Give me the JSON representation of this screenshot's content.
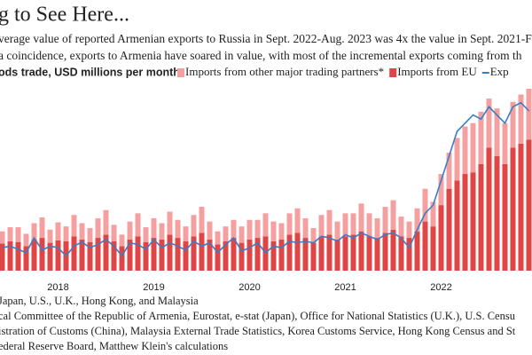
{
  "chart_data": {
    "type": "bar",
    "title": "g to See Here...",
    "subtitle": [
      "verage value of reported Armenian exports to Russia in Sept. 2022-Aug. 2023 was 4x the value in Sept. 2021-Fe",
      "a coincidence, exports to Armenia have soared in value, with most of the incremental exports coming from th"
    ],
    "y_label": "ods trade, USD millions per month",
    "categories": [
      null,
      null,
      null,
      null,
      null,
      null,
      null,
      "2018",
      null,
      null,
      null,
      null,
      null,
      null,
      null,
      null,
      null,
      null,
      null,
      "2019",
      null,
      null,
      null,
      null,
      null,
      null,
      null,
      null,
      null,
      null,
      null,
      "2020",
      null,
      null,
      null,
      null,
      null,
      null,
      null,
      null,
      null,
      null,
      null,
      "2021",
      null,
      null,
      null,
      null,
      null,
      null,
      null,
      null,
      null,
      null,
      null,
      "2022",
      null,
      null,
      null,
      null,
      null,
      null,
      null,
      null,
      null,
      null,
      null
    ],
    "series": [
      {
        "name": "Imports from EU",
        "color": "#e04545",
        "values": [
          33,
          36,
          35,
          30,
          38,
          40,
          34,
          37,
          36,
          42,
          38,
          35,
          40,
          44,
          36,
          30,
          38,
          42,
          35,
          40,
          38,
          44,
          40,
          36,
          42,
          46,
          38,
          32,
          36,
          40,
          34,
          38,
          40,
          42,
          36,
          38,
          44,
          46,
          40,
          34,
          42,
          44,
          38,
          42,
          44,
          48,
          42,
          40,
          46,
          50,
          42,
          40,
          48,
          60,
          54,
          80,
          100,
          110,
          118,
          120,
          130,
          150,
          140,
          130,
          150,
          155,
          160
        ]
      },
      {
        "name": "Imports from other major trading partners*",
        "color": "#f4a0a0",
        "values": [
          15,
          17,
          18,
          15,
          20,
          25,
          16,
          22,
          18,
          26,
          20,
          17,
          24,
          30,
          20,
          14,
          22,
          28,
          18,
          24,
          20,
          28,
          22,
          18,
          26,
          32,
          22,
          16,
          18,
          22,
          20,
          24,
          22,
          28,
          24,
          20,
          26,
          30,
          24,
          18,
          26,
          30,
          22,
          28,
          26,
          34,
          28,
          24,
          32,
          36,
          24,
          20,
          28,
          40,
          30,
          38,
          44,
          52,
          58,
          60,
          64,
          60,
          58,
          50,
          56,
          60,
          62
        ]
      },
      {
        "name": "Exp",
        "color": "#3b7dc4",
        "line": true,
        "values": [
          28,
          30,
          26,
          22,
          40,
          25,
          30,
          28,
          18,
          30,
          35,
          28,
          32,
          38,
          30,
          18,
          34,
          32,
          26,
          38,
          28,
          34,
          30,
          25,
          36,
          30,
          34,
          22,
          32,
          40,
          24,
          28,
          34,
          22,
          30,
          28,
          36,
          34,
          36,
          34,
          42,
          40,
          36,
          44,
          40,
          46,
          42,
          38,
          44,
          46,
          40,
          28,
          50,
          70,
          80,
          110,
          140,
          170,
          180,
          190,
          185,
          200,
          190,
          180,
          200,
          205,
          195
        ]
      }
    ],
    "notes": [
      "Japan, U.S., U.K., Hong Kong, and Malaysia",
      "cal Committee of the Republic of Armenia, Eurostat, e-stat (Japan), Office for National Statistics (U.K.), U.S. Censu",
      "istration of Customs (China), Malaysia External Trade Statistics, Korea Customs Service, Hong Kong Census and St",
      "ederal Reserve Board, Matthew Klein's calculations"
    ]
  }
}
